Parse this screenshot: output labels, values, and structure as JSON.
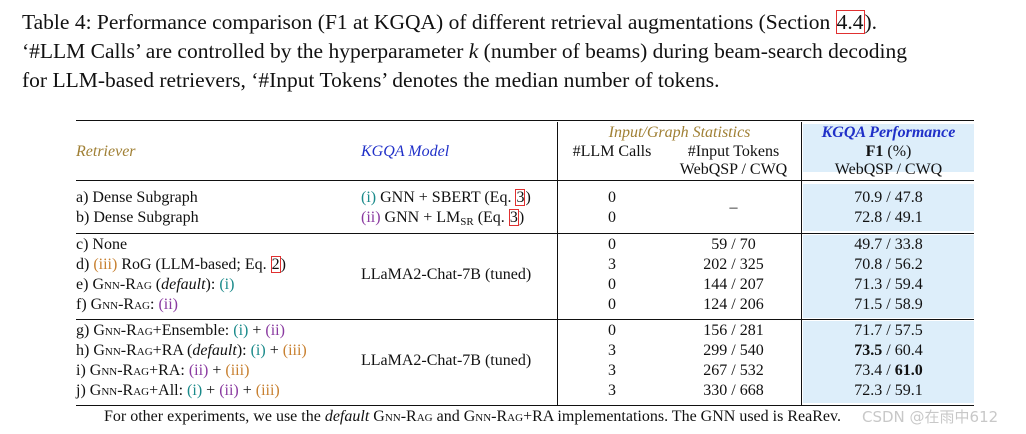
{
  "caption": {
    "l1_pre": "Table 4: Performance comparison (F1 at KGQA) of different retrieval augmentations (Section ",
    "l1_ref": "4.4",
    "l1_post": ").",
    "l2_pre": "‘#LLM Calls’ are controlled by the hyperparameter ",
    "l2_k": "k",
    "l2_post": " (number of beams) during beam-search decoding",
    "l3": "for LLM-based retrievers, ‘#Input Tokens’ denotes the median number of tokens."
  },
  "header": {
    "retriever": "Retriever",
    "kgqa_model": "KGQA Model",
    "group_stats": "Input/Graph Statistics",
    "group_perf": "KGQA Performance",
    "llm_calls": "#LLM Calls",
    "input_tokens": "#Input Tokens",
    "tokens_sub": "WebQSP / CWQ",
    "f1": "F1",
    "f1_unit": " (%)",
    "f1_sub": "WebQSP / CWQ"
  },
  "group1": {
    "model_a_mark": "(i)",
    "model_a_text": " GNN + SBERT (Eq. ",
    "model_a_ref": "3",
    "model_a_close": ")",
    "model_b_mark": "(ii)",
    "model_b_text": " GNN + LM",
    "model_b_sub": "SR",
    "model_b_mid": " (Eq. ",
    "model_b_ref": "3",
    "model_b_close": ")",
    "rows": [
      {
        "retriever": "a) Dense Subgraph",
        "calls": "0",
        "tokens": "–",
        "f1": "70.9 / 47.8"
      },
      {
        "retriever": "b) Dense Subgraph",
        "calls": "0",
        "tokens": "",
        "f1": "72.8 / 49.1"
      }
    ]
  },
  "group2": {
    "model": "LLaMA2-Chat-7B (tuned)",
    "c_label": "c) None",
    "d_pre": "d) ",
    "d_mark": "(iii)",
    "d_text": " RoG (LLM-based; Eq. ",
    "d_ref": "2",
    "d_close": ")",
    "e_pre": "e) ",
    "e_name": "Gnn-Rag",
    "e_mid": " (",
    "e_default": "default",
    "e_post": "): ",
    "e_mark": "(i)",
    "f_pre": "f) ",
    "f_name": "Gnn-Rag",
    "f_post": ": ",
    "f_mark": "(ii)",
    "rows": [
      {
        "calls": "0",
        "tokens": "59 / 70",
        "f1": "49.7 / 33.8"
      },
      {
        "calls": "3",
        "tokens": "202 / 325",
        "f1": "70.8 / 56.2"
      },
      {
        "calls": "0",
        "tokens": "144 / 207",
        "f1": "71.3 / 59.4"
      },
      {
        "calls": "0",
        "tokens": "124 / 206",
        "f1": "71.5 / 58.9"
      }
    ]
  },
  "group3": {
    "model": "LLaMA2-Chat-7B (tuned)",
    "g_pre": "g) ",
    "g_name": "Gnn-Rag",
    "g_suffix": "+Ensemble: ",
    "g_m1": "(i)",
    "g_plus": " + ",
    "g_m2": "(ii)",
    "h_pre": "h) ",
    "h_name": "Gnn-Rag",
    "h_suffix": "+RA (",
    "h_default": "default",
    "h_post": "): ",
    "h_m1": "(i)",
    "h_plus": " + ",
    "h_m2": "(iii)",
    "i_pre": "i) ",
    "i_name": "Gnn-Rag",
    "i_suffix": "+RA: ",
    "i_m1": "(ii)",
    "i_plus": " + ",
    "i_m2": "(iii)",
    "j_pre": "j) ",
    "j_name": "Gnn-Rag",
    "j_suffix": "+All: ",
    "j_m1": "(i)",
    "j_plus1": " + ",
    "j_m2": "(ii)",
    "j_plus2": " + ",
    "j_m3": "(iii)",
    "rows": [
      {
        "calls": "0",
        "tokens": "156 / 281",
        "f1": "71.7 / 57.5"
      },
      {
        "calls": "3",
        "tokens": "299 / 540",
        "f1_a": "73.5",
        "f1_sep": " / ",
        "f1_b": "60.4"
      },
      {
        "calls": "3",
        "tokens": "267 / 532",
        "f1_a": "73.4",
        "f1_sep": " / ",
        "f1_b": "61.0"
      },
      {
        "calls": "3",
        "tokens": "330 / 668",
        "f1": "72.3 / 59.1"
      }
    ]
  },
  "footer": {
    "pre": "For other experiments, we use the ",
    "default": "default",
    "mid1": " ",
    "name1": "Gnn-Rag",
    "mid2": " and ",
    "name2": "Gnn-Rag",
    "post": "+RA implementations. The GNN used is ReaRev."
  },
  "watermark": "CSDN @在雨中612"
}
